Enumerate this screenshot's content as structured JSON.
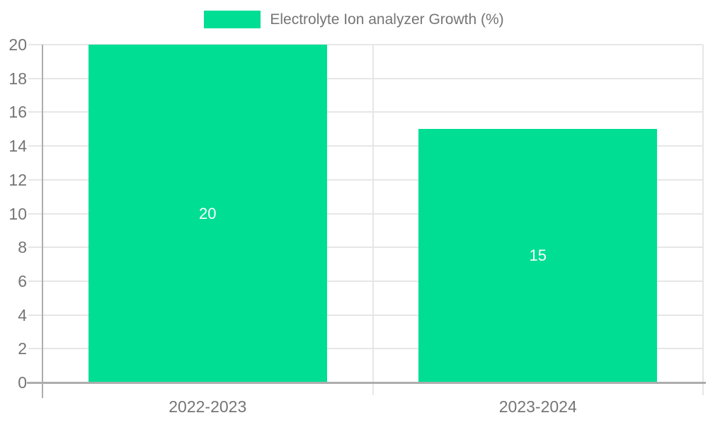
{
  "chart_data": {
    "type": "bar",
    "title": "",
    "legend": {
      "label": "Electrolyte Ion analyzer Growth (%)",
      "position": "top-center"
    },
    "categories": [
      "2022-2023",
      "2023-2024"
    ],
    "series": [
      {
        "name": "Electrolyte Ion analyzer Growth (%)",
        "values": [
          20,
          15
        ]
      }
    ],
    "bar_labels": [
      "20",
      "15"
    ],
    "xlabel": "",
    "ylabel": "",
    "ylim": [
      0,
      20
    ],
    "yticks": [
      0,
      2,
      4,
      6,
      8,
      10,
      12,
      14,
      16,
      18,
      20
    ],
    "grid": true,
    "colors": {
      "bar": "#00DE94",
      "axis_line": "#adadad",
      "gridline": "#e6e6e6",
      "tick_label": "#757575",
      "bar_value_label": "#ffffff",
      "background": "#ffffff"
    }
  }
}
